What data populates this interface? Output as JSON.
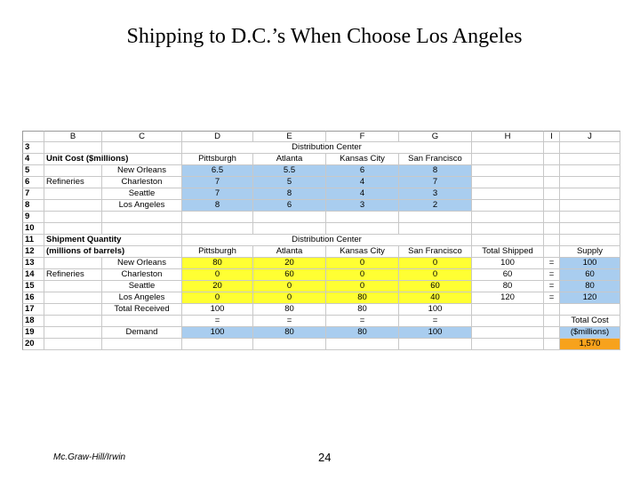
{
  "header": {
    "title": "Shipping to D.C.’s When Choose Los Angeles"
  },
  "sheet": {
    "columns": [
      "B",
      "C",
      "D",
      "E",
      "F",
      "G",
      "H",
      "I",
      "J"
    ],
    "rows": [
      {
        "num": "3",
        "cells": [
          null,
          null,
          "Distribution Center",
          null,
          null,
          null,
          null,
          null,
          null
        ]
      },
      {
        "num": "4",
        "cells": [
          "Unit Cost ($millions)",
          null,
          "Pittsburgh",
          "Atlanta",
          "Kansas City",
          "San Francisco",
          null,
          null,
          null
        ]
      },
      {
        "num": "5",
        "cells": [
          null,
          "New Orleans",
          "6.5",
          "5.5",
          "6",
          "8",
          null,
          null,
          null
        ]
      },
      {
        "num": "6",
        "cells": [
          "Refineries",
          "Charleston",
          "7",
          "5",
          "4",
          "7",
          null,
          null,
          null
        ]
      },
      {
        "num": "7",
        "cells": [
          null,
          "Seattle",
          "7",
          "8",
          "4",
          "3",
          null,
          null,
          null
        ]
      },
      {
        "num": "8",
        "cells": [
          null,
          "Los Angeles",
          "8",
          "6",
          "3",
          "2",
          null,
          null,
          null
        ]
      },
      {
        "num": "9",
        "cells": [
          null,
          null,
          null,
          null,
          null,
          null,
          null,
          null,
          null
        ]
      },
      {
        "num": "10",
        "cells": [
          null,
          null,
          null,
          null,
          null,
          null,
          null,
          null,
          null
        ]
      },
      {
        "num": "11",
        "cells": [
          "Shipment Quantity",
          null,
          "Distribution Center",
          null,
          null,
          null,
          null,
          null,
          null
        ]
      },
      {
        "num": "12",
        "cells": [
          "(millions of barrels)",
          null,
          "Pittsburgh",
          "Atlanta",
          "Kansas City",
          "San Francisco",
          "Total Shipped",
          null,
          "Supply"
        ]
      },
      {
        "num": "13",
        "cells": [
          null,
          "New Orleans",
          "80",
          "20",
          "0",
          "0",
          "100",
          "=",
          "100"
        ]
      },
      {
        "num": "14",
        "cells": [
          "Refineries",
          "Charleston",
          "0",
          "60",
          "0",
          "0",
          "60",
          "=",
          "60"
        ]
      },
      {
        "num": "15",
        "cells": [
          null,
          "Seattle",
          "20",
          "0",
          "0",
          "60",
          "80",
          "=",
          "80"
        ]
      },
      {
        "num": "16",
        "cells": [
          null,
          "Los Angeles",
          "0",
          "0",
          "80",
          "40",
          "120",
          "=",
          "120"
        ]
      },
      {
        "num": "17",
        "cells": [
          null,
          "Total Received",
          "100",
          "80",
          "80",
          "100",
          null,
          null,
          null
        ]
      },
      {
        "num": "18",
        "cells": [
          null,
          null,
          "=",
          "=",
          "=",
          "=",
          null,
          null,
          "Total Cost"
        ]
      },
      {
        "num": "19",
        "cells": [
          null,
          "Demand",
          "100",
          "80",
          "80",
          "100",
          null,
          null,
          "($millions)"
        ]
      },
      {
        "num": "20",
        "cells": [
          null,
          null,
          null,
          null,
          null,
          null,
          null,
          null,
          "1,570"
        ]
      }
    ]
  },
  "footer": {
    "publisher": "Mc.Graw-Hill/Irwin",
    "page": "24"
  }
}
